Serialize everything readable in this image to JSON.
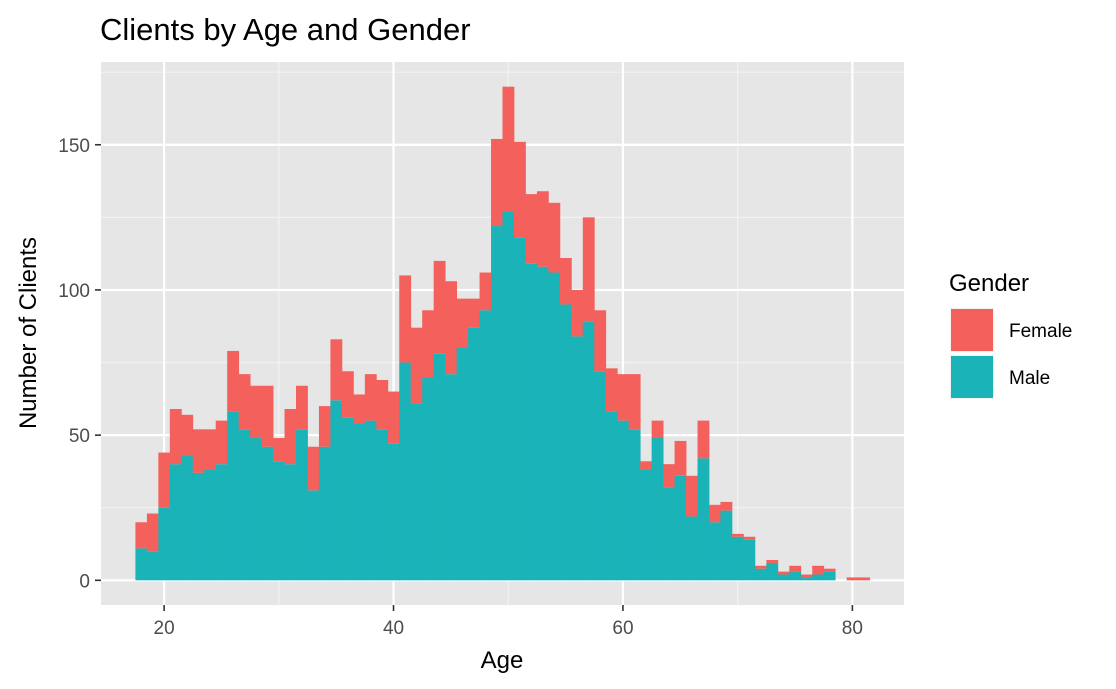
{
  "chart_data": {
    "type": "bar",
    "stacked": true,
    "title": "Clients by Age and Gender",
    "xlabel": "Age",
    "ylabel": "Number of Clients",
    "xlim": [
      14.5,
      84.5
    ],
    "ylim": [
      -8.5,
      178.5
    ],
    "x_ticks": [
      20,
      40,
      60,
      80
    ],
    "y_ticks": [
      0,
      50,
      100,
      150
    ],
    "x_tick_labels": [
      "20",
      "40",
      "60",
      "80"
    ],
    "y_tick_labels": [
      "0",
      "50",
      "100",
      "150"
    ],
    "grid": true,
    "legend": {
      "title": "Gender",
      "position": "right"
    },
    "x": [
      18,
      19,
      20,
      21,
      22,
      23,
      24,
      25,
      26,
      27,
      28,
      29,
      30,
      31,
      32,
      33,
      34,
      35,
      36,
      37,
      38,
      39,
      40,
      41,
      42,
      43,
      44,
      45,
      46,
      47,
      48,
      49,
      50,
      51,
      52,
      53,
      54,
      55,
      56,
      57,
      58,
      59,
      60,
      61,
      62,
      63,
      64,
      65,
      66,
      67,
      68,
      69,
      70,
      71,
      72,
      73,
      74,
      75,
      76,
      77,
      78,
      79,
      80,
      81
    ],
    "series": [
      {
        "name": "Male",
        "color": "#19b3b8",
        "values": [
          11,
          10,
          25,
          40,
          43,
          37,
          38,
          40,
          58,
          52,
          49,
          46,
          41,
          40,
          52,
          31,
          46,
          62,
          56,
          54,
          55,
          52,
          47,
          75,
          61,
          70,
          78,
          71,
          80,
          87,
          93,
          122,
          127,
          118,
          109,
          108,
          106,
          95,
          84,
          89,
          72,
          58,
          55,
          52,
          38,
          49,
          32,
          36,
          22,
          42,
          20,
          24,
          15,
          14,
          4,
          6,
          2,
          3,
          1,
          2,
          3,
          0,
          0,
          0
        ]
      },
      {
        "name": "Female",
        "color": "#f4605b",
        "values": [
          9,
          13,
          19,
          19,
          14,
          15,
          14,
          15,
          21,
          19,
          18,
          21,
          8,
          19,
          15,
          15,
          14,
          21,
          16,
          10,
          16,
          17,
          18,
          30,
          26,
          23,
          32,
          32,
          17,
          10,
          13,
          30,
          43,
          33,
          24,
          26,
          24,
          16,
          16,
          36,
          21,
          15,
          16,
          19,
          3,
          6,
          8,
          12,
          14,
          13,
          6,
          3,
          1,
          1,
          1,
          1,
          1,
          2,
          1,
          3,
          1,
          0,
          1,
          1
        ]
      }
    ]
  }
}
